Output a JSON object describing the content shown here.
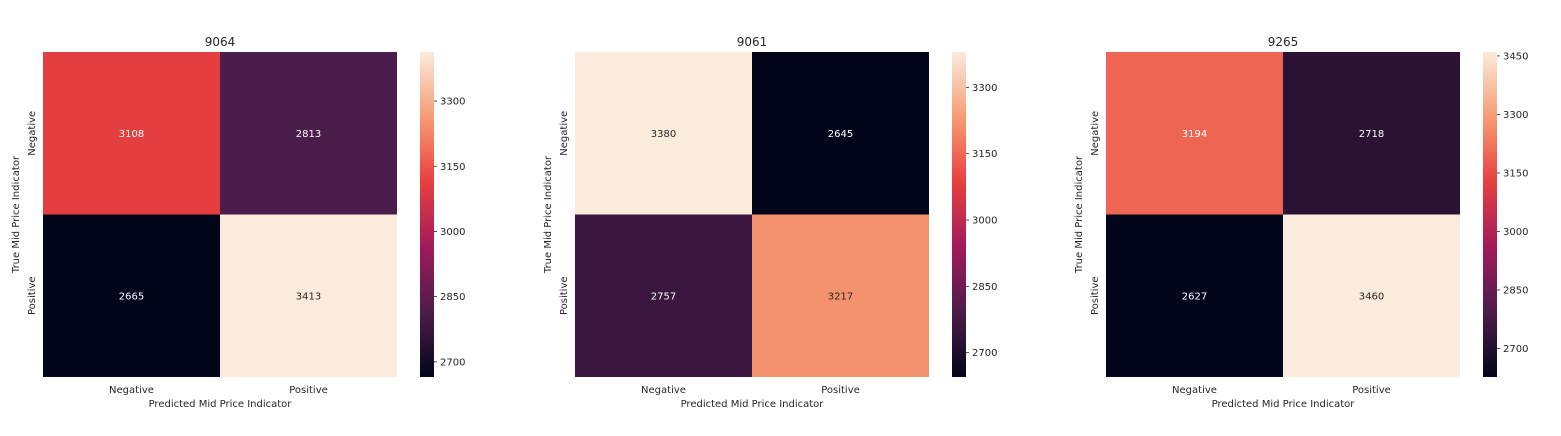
{
  "chart_data": [
    {
      "type": "heatmap",
      "title": "9064",
      "xlabel": "Predicted Mid Price Indicator",
      "ylabel": "True Mid Price Indicator",
      "x_categories": [
        "Negative",
        "Positive"
      ],
      "y_categories": [
        "Negative",
        "Positive"
      ],
      "values": [
        [
          3108,
          2813
        ],
        [
          2665,
          3413
        ]
      ],
      "colorbar": {
        "min": 2665,
        "max": 3413,
        "ticks": [
          2700,
          2850,
          3000,
          3150,
          3300
        ]
      }
    },
    {
      "type": "heatmap",
      "title": "9061",
      "xlabel": "Predicted Mid Price Indicator",
      "ylabel": "True Mid Price Indicator",
      "x_categories": [
        "Negative",
        "Positive"
      ],
      "y_categories": [
        "Negative",
        "Positive"
      ],
      "values": [
        [
          3380,
          2645
        ],
        [
          2757,
          3217
        ]
      ],
      "colorbar": {
        "min": 2645,
        "max": 3380,
        "ticks": [
          2700,
          2850,
          3000,
          3150,
          3300
        ]
      }
    },
    {
      "type": "heatmap",
      "title": "9265",
      "xlabel": "Predicted Mid Price Indicator",
      "ylabel": "True Mid Price Indicator",
      "x_categories": [
        "Negative",
        "Positive"
      ],
      "y_categories": [
        "Negative",
        "Positive"
      ],
      "values": [
        [
          3194,
          2718
        ],
        [
          2627,
          3460
        ]
      ],
      "colorbar": {
        "min": 2627,
        "max": 3460,
        "ticks": [
          2700,
          2850,
          3000,
          3150,
          3300,
          3450
        ]
      }
    }
  ],
  "colors": {
    "colormap": [
      "#03051a",
      "#4c1d4b",
      "#a11a5b",
      "#e83f3f",
      "#f69c73",
      "#faebdd"
    ],
    "text_on_dark": "#ffffff",
    "text_on_light": "#262626"
  }
}
